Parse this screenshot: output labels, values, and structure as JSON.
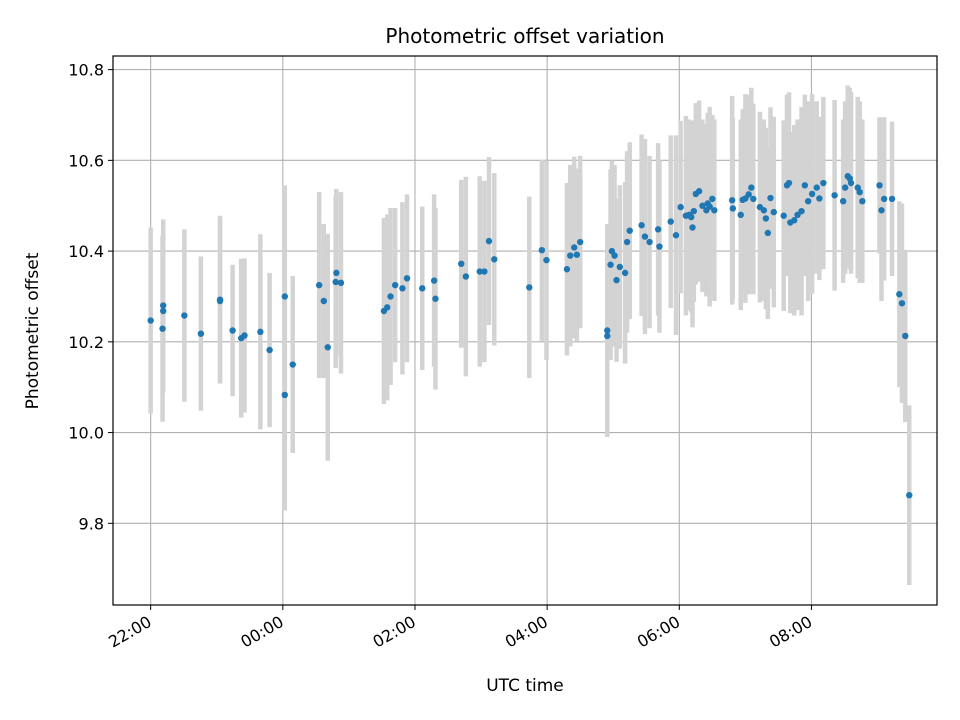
{
  "chart_data": {
    "type": "scatter",
    "title": "Photometric offset variation",
    "xlabel": "UTC time",
    "ylabel": "Photometric offset",
    "x_unit": "hours after 22:00 UTC",
    "x_ticks": [
      {
        "x": 0,
        "label": "22:00"
      },
      {
        "x": 2,
        "label": "00:00"
      },
      {
        "x": 4,
        "label": "02:00"
      },
      {
        "x": 6,
        "label": "04:00"
      },
      {
        "x": 8,
        "label": "06:00"
      },
      {
        "x": 10,
        "label": "08:00"
      }
    ],
    "y_ticks": [
      9.8,
      10.0,
      10.2,
      10.4,
      10.6,
      10.8
    ],
    "xlim": [
      -0.57,
      11.9
    ],
    "ylim": [
      9.62,
      10.83
    ],
    "grid": true,
    "colors": {
      "marker": "#1f77b4",
      "errorbar": "#d3d3d3",
      "grid": "#b0b0b0"
    },
    "points": [
      [
        0.0,
        10.247,
        0.205
      ],
      [
        0.18,
        10.229,
        0.205
      ],
      [
        0.19,
        10.28,
        0.19
      ],
      [
        0.19,
        10.268,
        0.18
      ],
      [
        0.51,
        10.258,
        0.19
      ],
      [
        0.76,
        10.218,
        0.17
      ],
      [
        1.05,
        10.293,
        0.185
      ],
      [
        1.05,
        10.29,
        0.18
      ],
      [
        1.24,
        10.225,
        0.145
      ],
      [
        1.37,
        10.208,
        0.175
      ],
      [
        1.42,
        10.214,
        0.17
      ],
      [
        1.66,
        10.222,
        0.215
      ],
      [
        1.8,
        10.182,
        0.17
      ],
      [
        2.03,
        10.3,
        0.245
      ],
      [
        2.03,
        10.083,
        0.255
      ],
      [
        2.15,
        10.15,
        0.195
      ],
      [
        2.55,
        10.325,
        0.205
      ],
      [
        2.62,
        10.29,
        0.17
      ],
      [
        2.68,
        10.188,
        0.25
      ],
      [
        2.8,
        10.332,
        0.19
      ],
      [
        2.81,
        10.352,
        0.185
      ],
      [
        2.88,
        10.33,
        0.2
      ],
      [
        3.53,
        10.268,
        0.205
      ],
      [
        3.58,
        10.276,
        0.205
      ],
      [
        3.63,
        10.3,
        0.195
      ],
      [
        3.7,
        10.325,
        0.17
      ],
      [
        3.81,
        10.318,
        0.19
      ],
      [
        3.88,
        10.34,
        0.185
      ],
      [
        4.11,
        10.318,
        0.18
      ],
      [
        4.29,
        10.335,
        0.19
      ],
      [
        4.31,
        10.295,
        0.2
      ],
      [
        4.7,
        10.372,
        0.185
      ],
      [
        4.77,
        10.344,
        0.22
      ],
      [
        4.98,
        10.355,
        0.21
      ],
      [
        5.05,
        10.355,
        0.2
      ],
      [
        5.12,
        10.422,
        0.185
      ],
      [
        5.2,
        10.382,
        0.19
      ],
      [
        5.73,
        10.32,
        0.2
      ],
      [
        5.92,
        10.402,
        0.2
      ],
      [
        5.99,
        10.38,
        0.22
      ],
      [
        6.3,
        10.36,
        0.19
      ],
      [
        6.35,
        10.39,
        0.2
      ],
      [
        6.41,
        10.408,
        0.2
      ],
      [
        6.45,
        10.392,
        0.19
      ],
      [
        6.5,
        10.42,
        0.19
      ],
      [
        6.91,
        10.225,
        0.235
      ],
      [
        6.91,
        10.213,
        0.22
      ],
      [
        6.96,
        10.37,
        0.21
      ],
      [
        6.98,
        10.4,
        0.2
      ],
      [
        7.02,
        10.39,
        0.2
      ],
      [
        7.05,
        10.336,
        0.18
      ],
      [
        7.1,
        10.365,
        0.18
      ],
      [
        7.18,
        10.352,
        0.2
      ],
      [
        7.21,
        10.42,
        0.2
      ],
      [
        7.25,
        10.445,
        0.195
      ],
      [
        7.43,
        10.457,
        0.2
      ],
      [
        7.48,
        10.432,
        0.215
      ],
      [
        7.55,
        10.42,
        0.19
      ],
      [
        7.7,
        10.41,
        0.19
      ],
      [
        7.68,
        10.448,
        0.19
      ],
      [
        7.87,
        10.465,
        0.19
      ],
      [
        7.95,
        10.435,
        0.22
      ],
      [
        8.02,
        10.497,
        0.19
      ],
      [
        8.1,
        10.478,
        0.22
      ],
      [
        8.15,
        10.48,
        0.21
      ],
      [
        8.18,
        10.475,
        0.21
      ],
      [
        8.2,
        10.452,
        0.22
      ],
      [
        8.22,
        10.488,
        0.2
      ],
      [
        8.25,
        10.526,
        0.2
      ],
      [
        8.3,
        10.532,
        0.2
      ],
      [
        8.35,
        10.5,
        0.19
      ],
      [
        8.41,
        10.49,
        0.19
      ],
      [
        8.43,
        10.505,
        0.2
      ],
      [
        8.46,
        10.498,
        0.22
      ],
      [
        8.5,
        10.515,
        0.185
      ],
      [
        8.53,
        10.49,
        0.2
      ],
      [
        8.8,
        10.512,
        0.23
      ],
      [
        8.81,
        10.494,
        0.2
      ],
      [
        8.93,
        10.48,
        0.21
      ],
      [
        8.96,
        10.513,
        0.2
      ],
      [
        9.0,
        10.516,
        0.23
      ],
      [
        9.05,
        10.525,
        0.22
      ],
      [
        9.09,
        10.54,
        0.22
      ],
      [
        9.12,
        10.515,
        0.21
      ],
      [
        9.22,
        10.497,
        0.21
      ],
      [
        9.28,
        10.49,
        0.2
      ],
      [
        9.31,
        10.472,
        0.2
      ],
      [
        9.34,
        10.44,
        0.19
      ],
      [
        9.38,
        10.517,
        0.2
      ],
      [
        9.43,
        10.486,
        0.21
      ],
      [
        9.58,
        10.478,
        0.21
      ],
      [
        9.63,
        10.545,
        0.2
      ],
      [
        9.66,
        10.55,
        0.2
      ],
      [
        9.68,
        10.463,
        0.2
      ],
      [
        9.74,
        10.468,
        0.21
      ],
      [
        9.79,
        10.48,
        0.21
      ],
      [
        9.85,
        10.488,
        0.23
      ],
      [
        9.9,
        10.545,
        0.2
      ],
      [
        9.95,
        10.51,
        0.22
      ],
      [
        10.01,
        10.526,
        0.22
      ],
      [
        10.08,
        10.54,
        0.19
      ],
      [
        10.12,
        10.516,
        0.18
      ],
      [
        10.18,
        10.55,
        0.19
      ],
      [
        10.35,
        10.523,
        0.21
      ],
      [
        10.48,
        10.51,
        0.18
      ],
      [
        10.51,
        10.54,
        0.19
      ],
      [
        10.55,
        10.565,
        0.2
      ],
      [
        10.58,
        10.56,
        0.2
      ],
      [
        10.6,
        10.55,
        0.2
      ],
      [
        10.7,
        10.54,
        0.2
      ],
      [
        10.73,
        10.53,
        0.2
      ],
      [
        10.77,
        10.51,
        0.18
      ],
      [
        11.03,
        10.545,
        0.15
      ],
      [
        11.06,
        10.49,
        0.2
      ],
      [
        11.1,
        10.515,
        0.18
      ],
      [
        11.22,
        10.515,
        0.17
      ],
      [
        11.33,
        10.305,
        0.205
      ],
      [
        11.37,
        10.285,
        0.22
      ],
      [
        11.42,
        10.213,
        0.19
      ],
      [
        11.48,
        9.862,
        0.198
      ]
    ]
  }
}
